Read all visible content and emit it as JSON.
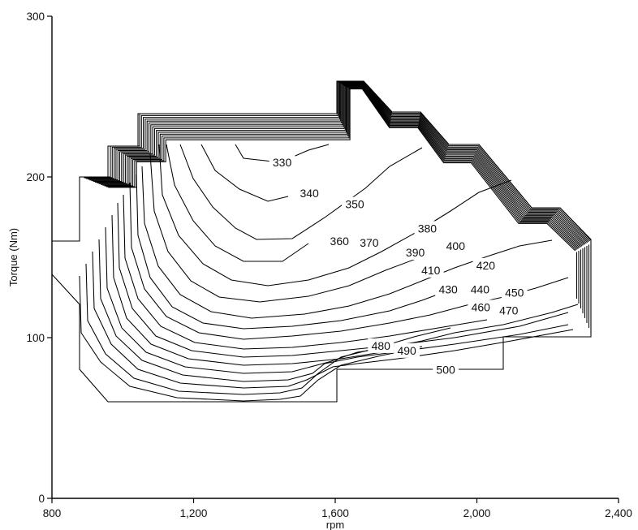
{
  "chart_data": {
    "type": "contour",
    "title": "",
    "xlabel": "rpm",
    "ylabel": "Torque (Nm)",
    "xlim": [
      800,
      2400
    ],
    "ylim": [
      0,
      300
    ],
    "x_ticks": [
      800,
      1200,
      1600,
      2000,
      2400
    ],
    "x_tick_labels": [
      "800",
      "1,200",
      "1,600",
      "2,000",
      "2,400"
    ],
    "y_ticks": [
      0,
      100,
      200,
      300
    ],
    "y_tick_labels": [
      "0",
      "100",
      "200",
      "300"
    ],
    "grid": false,
    "contour_levels": [
      330,
      340,
      350,
      360,
      370,
      380,
      390,
      400,
      410,
      420,
      430,
      440,
      450,
      460,
      470,
      480,
      490,
      500
    ],
    "contour_labels": [
      {
        "text": "330",
        "x": 1450,
        "y": 209
      },
      {
        "text": "340",
        "x": 1527,
        "y": 190
      },
      {
        "text": "350",
        "x": 1655,
        "y": 183
      },
      {
        "text": "360",
        "x": 1612,
        "y": 160
      },
      {
        "text": "370",
        "x": 1696,
        "y": 159
      },
      {
        "text": "380",
        "x": 1860,
        "y": 168
      },
      {
        "text": "390",
        "x": 1826,
        "y": 153
      },
      {
        "text": "400",
        "x": 1940,
        "y": 157
      },
      {
        "text": "410",
        "x": 1870,
        "y": 142
      },
      {
        "text": "420",
        "x": 2025,
        "y": 145
      },
      {
        "text": "430",
        "x": 1919,
        "y": 130
      },
      {
        "text": "440",
        "x": 2009,
        "y": 130
      },
      {
        "text": "450",
        "x": 2106,
        "y": 128
      },
      {
        "text": "460",
        "x": 2011,
        "y": 119
      },
      {
        "text": "470",
        "x": 2090,
        "y": 117
      },
      {
        "text": "480",
        "x": 1729,
        "y": 95
      },
      {
        "text": "490",
        "x": 1802,
        "y": 92
      },
      {
        "text": "500",
        "x": 1912,
        "y": 80
      }
    ]
  }
}
